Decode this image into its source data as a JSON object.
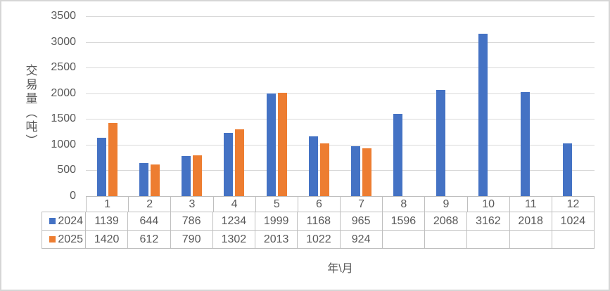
{
  "chart_data": {
    "type": "bar",
    "title": "",
    "categories": [
      "1",
      "2",
      "3",
      "4",
      "5",
      "6",
      "7",
      "8",
      "9",
      "10",
      "11",
      "12"
    ],
    "series": [
      {
        "name": "2024",
        "color": "#4472C4",
        "values": [
          1139,
          644,
          786,
          1234,
          1999,
          1168,
          965,
          1596,
          2068,
          3162,
          2018,
          1024
        ]
      },
      {
        "name": "2025",
        "color": "#ED7D31",
        "values": [
          1420,
          612,
          790,
          1302,
          2013,
          1022,
          924,
          null,
          null,
          null,
          null,
          null
        ]
      }
    ],
    "xlabel": "年\\月",
    "ylabel": "交易量（吨）",
    "ylim": [
      0,
      3500
    ],
    "ytick_step": 500,
    "grid": true,
    "data_table": true,
    "legend_position": "data-table-left"
  },
  "style": {
    "grid_color": "#D9D9D9",
    "axis_color": "#BFBFBF",
    "text_color": "#595959",
    "frame_color": "#D6D6D6",
    "background": "#FFFFFF"
  }
}
